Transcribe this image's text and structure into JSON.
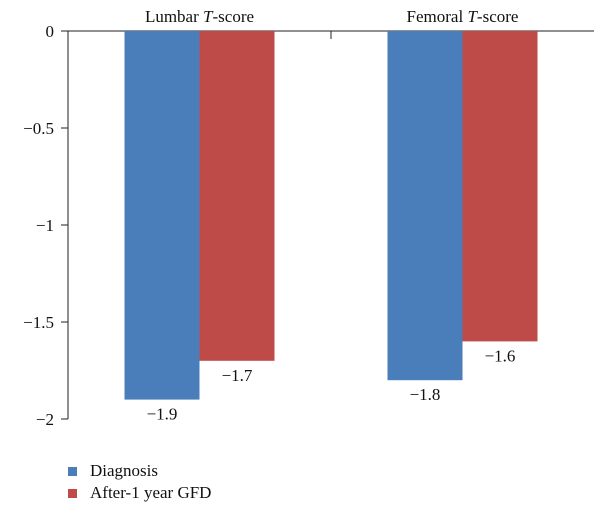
{
  "chart_data": {
    "type": "bar",
    "categories": [
      {
        "prefix": "Lumbar ",
        "italic": "T",
        "suffix": "-score"
      },
      {
        "prefix": "Femoral ",
        "italic": "T",
        "suffix": "-score"
      }
    ],
    "series": [
      {
        "name": "Diagnosis",
        "color": "#4a7eba",
        "values": [
          -1.9,
          -1.8
        ],
        "labels": [
          "−1.9",
          "−1.8"
        ]
      },
      {
        "name": "After-1 year GFD",
        "color": "#bf4b48",
        "values": [
          -1.7,
          -1.6
        ],
        "labels": [
          "−1.7",
          "−1.6"
        ]
      }
    ],
    "ylim": [
      -2,
      0
    ],
    "yticks": [
      0,
      -0.5,
      -1,
      -1.5,
      -2
    ],
    "ytick_labels": [
      "0",
      "−0.5",
      "−1",
      "−1.5",
      "−2"
    ],
    "category_labels_position": "top",
    "legend_position": "bottom-left",
    "grid": false
  }
}
